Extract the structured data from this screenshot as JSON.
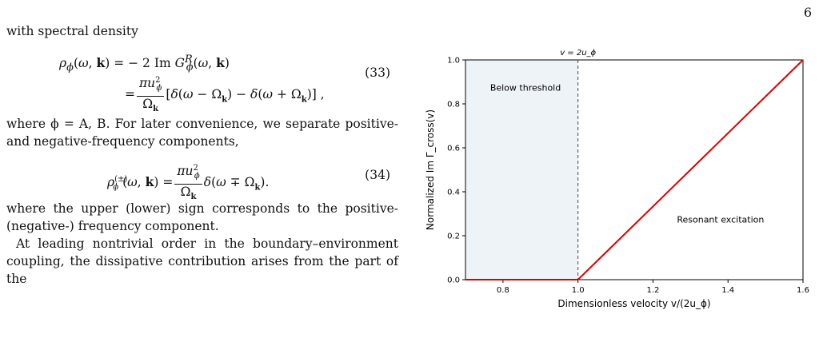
{
  "page_number": "6",
  "text": {
    "intro": "with spectral density",
    "eq33_number": "(33)",
    "after_eq33": "where ϕ = A, B. For later convenience, we separate positive- and negative-frequency components,",
    "eq34_number": "(34)",
    "after_eq34": "where the upper (lower) sign corresponds to the positive- (negative-) frequency component.",
    "final_para": "At leading nontrivial order in the boundary–environment coupling, the dissipative contribution arises from the part of the"
  },
  "chart_data": {
    "type": "line",
    "xlabel": "Dimensionless velocity v/(2u_ϕ)",
    "ylabel": "Normalized Im Γ_cross(v)",
    "xlim": [
      0.7,
      1.6
    ],
    "ylim": [
      0.0,
      1.0
    ],
    "xticks": [
      0.8,
      1.0,
      1.2,
      1.4,
      1.6
    ],
    "yticks": [
      0.0,
      0.2,
      0.4,
      0.6,
      0.8,
      1.0
    ],
    "series": [
      {
        "name": "",
        "color": "#dd0000",
        "x": [
          0.7,
          1.0,
          1.6
        ],
        "y": [
          0.0,
          0.0,
          1.0
        ]
      }
    ],
    "threshold": {
      "x": 1.0,
      "label": "v = 2u_ϕ",
      "style": "dashed"
    },
    "shaded_region": {
      "x_from": 0.7,
      "x_to": 1.0,
      "color": "#eef3f8"
    },
    "annotations": [
      {
        "text": "Below threshold",
        "x": 0.86,
        "y": 0.86
      },
      {
        "text": "Resonant excitation",
        "x": 1.38,
        "y": 0.26
      }
    ],
    "grid": false
  }
}
